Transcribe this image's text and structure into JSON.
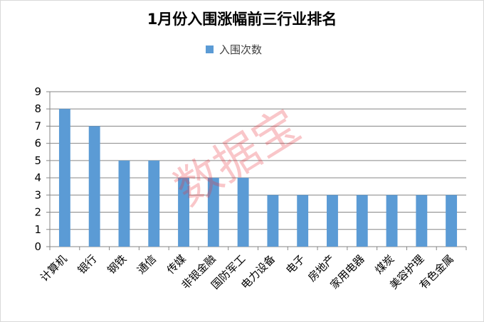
{
  "chart_data": {
    "type": "bar",
    "title": "1月份入围涨幅前三行业排名",
    "legend": {
      "position": "top",
      "entries": [
        "入围次数"
      ]
    },
    "categories": [
      "计算机",
      "银行",
      "钢铁",
      "通信",
      "传媒",
      "非银金融",
      "国防军工",
      "电力设备",
      "电子",
      "房地产",
      "家用电器",
      "煤炭",
      "美容护理",
      "有色金属"
    ],
    "series": [
      {
        "name": "入围次数",
        "values": [
          8,
          7,
          5,
          5,
          4,
          4,
          4,
          3,
          3,
          3,
          3,
          3,
          3,
          3
        ]
      }
    ],
    "ylim": [
      0,
      9
    ],
    "yticks": [
      0,
      1,
      2,
      3,
      4,
      5,
      6,
      7,
      8,
      9
    ],
    "grid": true,
    "colors": {
      "bar": "#5b9bd5",
      "grid": "#868686",
      "axis": "#868686"
    }
  },
  "watermark": "数据宝"
}
